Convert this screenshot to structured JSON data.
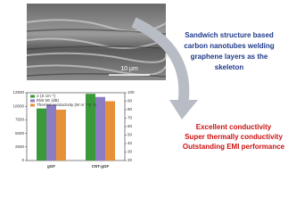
{
  "sem_image": {
    "scale_bar": "10 μm"
  },
  "description": {
    "lines": [
      "Sandwich structure based",
      "carbon nanotubes welding",
      "graphene layers as the",
      "skeleton"
    ]
  },
  "highlights": {
    "lines": [
      "Excellent conductivity",
      "Super thermally conductivity",
      "Outstanding EMI performance"
    ]
  },
  "chart_data": {
    "type": "bar",
    "categories": [
      "gGF",
      "CNT-gGF"
    ],
    "series": [
      {
        "name": "σ (S cm⁻¹)",
        "color": "#3a9a3a",
        "values": [
          9600,
          12300
        ]
      },
      {
        "name": "EMI SE (dB)",
        "color": "#8e7cc3",
        "values": [
          86,
          95
        ],
        "axis": "y2"
      },
      {
        "name": "Thermal conductivity (W m⁻¹ K⁻¹)",
        "color": "#e69138",
        "values": [
          80,
          90
        ],
        "axis": "y2"
      }
    ],
    "ylim": [
      0,
      12500
    ],
    "yticks": [
      0,
      2500,
      5000,
      7500,
      10000,
      12500
    ],
    "y2lim": [
      20,
      100
    ],
    "y2ticks": [
      20,
      30,
      40,
      50,
      60,
      70,
      80,
      90,
      100
    ],
    "legend": "upper left"
  }
}
